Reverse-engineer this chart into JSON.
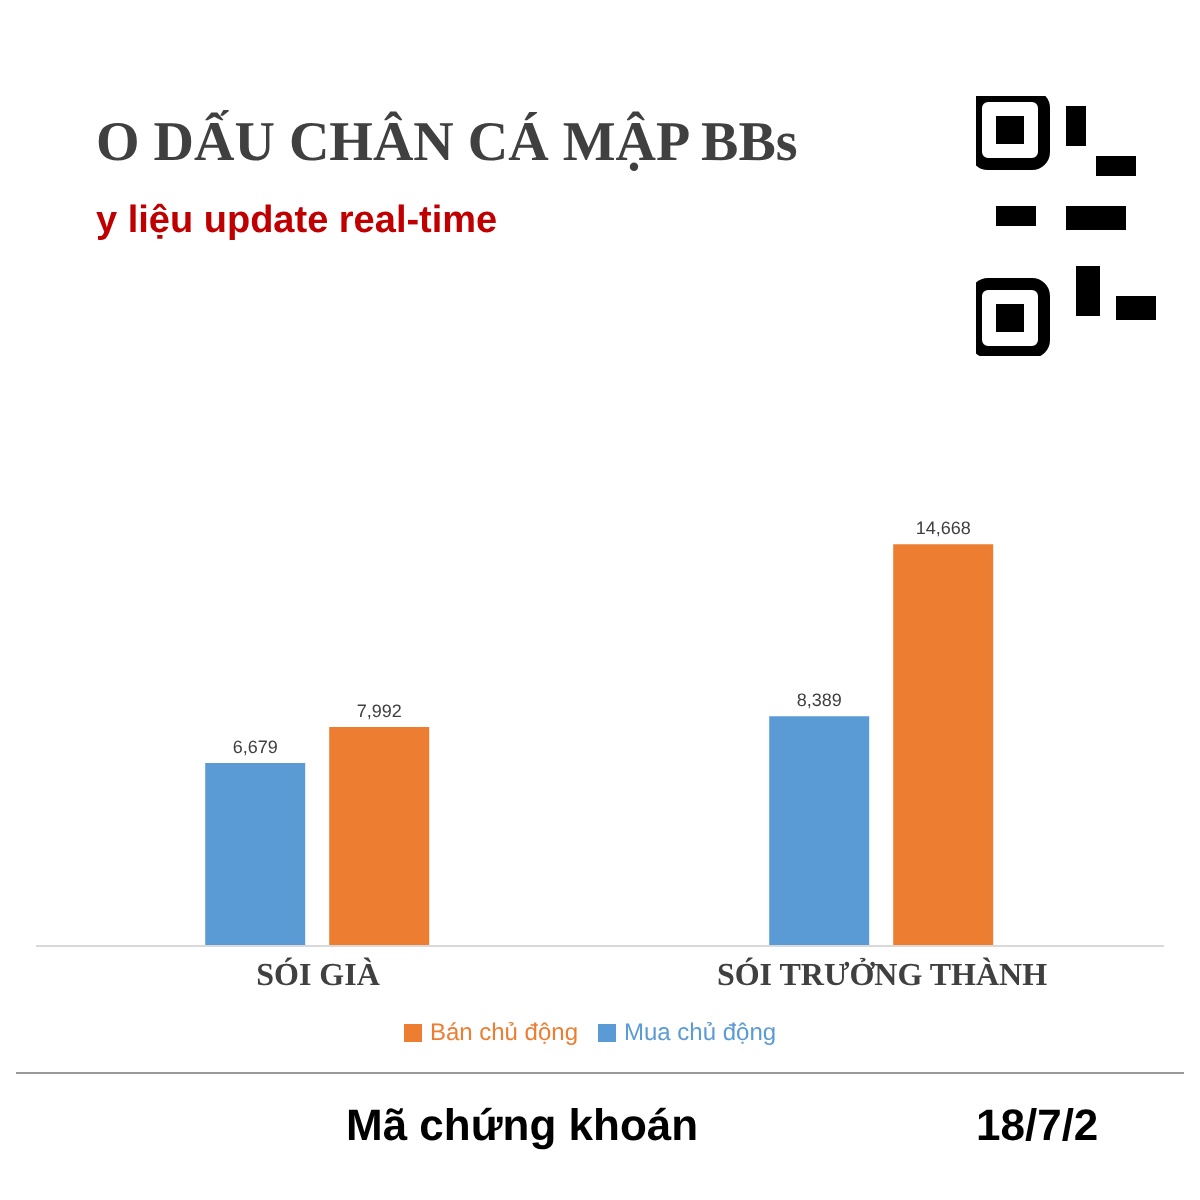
{
  "chart_data": {
    "type": "bar",
    "title": "O DẤU CHÂN CÁ MẬP BBs",
    "subtitle": "y liệu update real-time",
    "categories": [
      "SÓI GIÀ",
      "SÓI TRƯỞNG THÀNH"
    ],
    "series": [
      {
        "name": "Mua chủ động",
        "color": "#5b9bd5",
        "values": [
          6679,
          8389
        ],
        "value_labels": [
          "6,679",
          "8,389"
        ]
      },
      {
        "name": "Bán chủ động",
        "color": "#ed7d31",
        "values": [
          7992,
          14668
        ],
        "value_labels": [
          "7,992",
          "14,668"
        ]
      }
    ],
    "legend": "bottom",
    "annotations": [
      "Mã chứng khoán",
      "18/7/2"
    ]
  }
}
